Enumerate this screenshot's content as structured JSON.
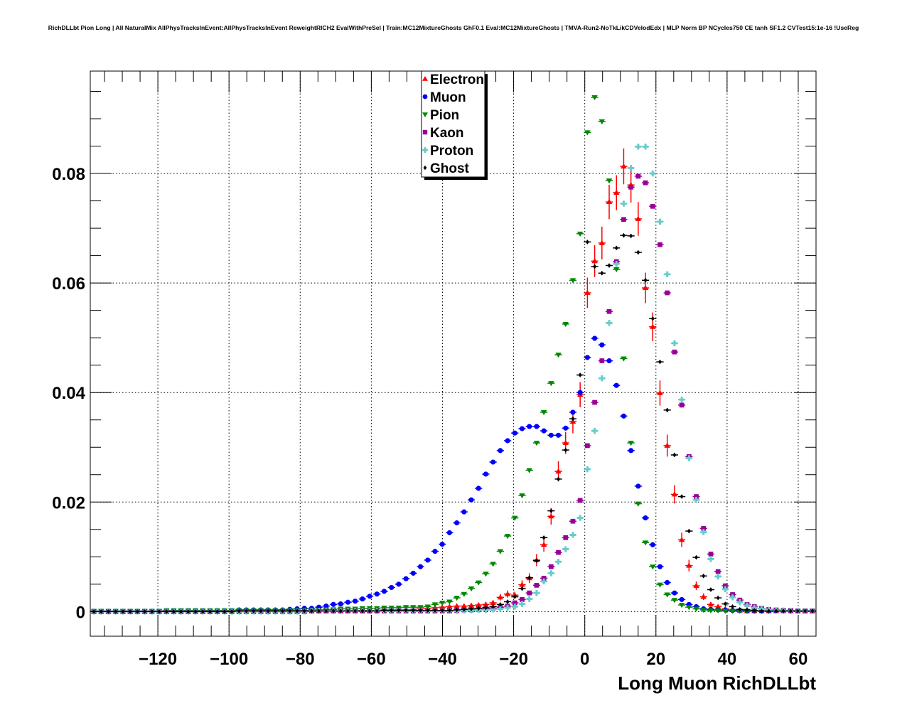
{
  "chart_data": {
    "type": "scatter",
    "title": "RichDLLbt Pion Long | All NaturalMix AllPhysTracksInEvent:AllPhysTracksInEvent ReweightRICH2 EvalWithPreSel | Train:MC12MixtureGhosts GhF0.1 Eval:MC12MixtureGhosts | TMVA-Run2-NoTkLikCDVelodEdx | MLP Norm BP NCycles750 CE tanh SF1.2 CVTest15:1e-16 !UseReg",
    "xlabel": "Long Muon RichDLLbt",
    "ylabel": "",
    "xlim": [
      -139,
      65
    ],
    "ylim": [
      -0.0045,
      0.0987
    ],
    "nbins": 100,
    "grid": true,
    "legend_position": "top-center",
    "xticks": [
      -120,
      -100,
      -80,
      -60,
      -40,
      -20,
      0,
      20,
      40,
      60
    ],
    "xtick_labels": [
      "−120",
      "−100",
      "−80",
      "−60",
      "−40",
      "−20",
      "0",
      "20",
      "40",
      "60"
    ],
    "yticks": [
      0,
      0.02,
      0.04,
      0.06,
      0.08
    ],
    "ytick_labels": [
      "0",
      "0.02",
      "0.04",
      "0.06",
      "0.08"
    ],
    "series": [
      {
        "name": "Electron",
        "color": "#ff0000",
        "marker": "triangle-up",
        "values": [
          0,
          0,
          0,
          0,
          0,
          0,
          0,
          0,
          0,
          0,
          0,
          0,
          0,
          0,
          0,
          0,
          0,
          0,
          0,
          0,
          0.0001,
          0.0001,
          0.0001,
          0.0001,
          0.0001,
          0.0001,
          0.0001,
          0.0001,
          0.0001,
          0.0001,
          0.0001,
          0.0001,
          0.0001,
          0.0001,
          0.0001,
          0.0002,
          0.0002,
          0.0002,
          0.0002,
          0.0002,
          0.0003,
          0.0003,
          0.0003,
          0.0003,
          0.0004,
          0.0005,
          0.0006,
          0.0007,
          0.0008,
          0.0009,
          0.001,
          0.001,
          0.0011,
          0.0012,
          0.0013,
          0.0016,
          0.0026,
          0.0032,
          0.003,
          0.0049,
          0.0061,
          0.0094,
          0.0122,
          0.0174,
          0.0256,
          0.0308,
          0.0347,
          0.0396,
          0.0582,
          0.064,
          0.0673,
          0.0748,
          0.0765,
          0.0813,
          0.0779,
          0.0717,
          0.0591,
          0.052,
          0.0399,
          0.0303,
          0.0214,
          0.0131,
          0.0084,
          0.0047,
          0.0027,
          0.0013,
          0.0009,
          0.0005,
          0.0003,
          0.0002,
          0.0001,
          0.0001,
          0.0001,
          0.0001,
          0.0001,
          0.0001,
          0.0001,
          0.0001,
          0.0001,
          0.0001
        ]
      },
      {
        "name": "Muon",
        "color": "#0000ff",
        "marker": "circle",
        "values": [
          0.0001,
          0.0001,
          0.0001,
          0.0001,
          0.0001,
          0.0001,
          0.0001,
          0.0001,
          0.0001,
          0.0001,
          0.0002,
          0.0002,
          0.0002,
          0.0002,
          0.0002,
          0.0002,
          0.0002,
          0.0002,
          0.0002,
          0.0002,
          0.0003,
          0.0003,
          0.0003,
          0.0003,
          0.0003,
          0.0003,
          0.0003,
          0.0004,
          0.0005,
          0.0006,
          0.0006,
          0.0008,
          0.001,
          0.0013,
          0.0014,
          0.0017,
          0.0019,
          0.0023,
          0.0028,
          0.0032,
          0.0037,
          0.0044,
          0.005,
          0.006,
          0.007,
          0.0082,
          0.0094,
          0.011,
          0.0123,
          0.0144,
          0.0162,
          0.0182,
          0.0204,
          0.0225,
          0.0251,
          0.0273,
          0.0294,
          0.0312,
          0.0326,
          0.0334,
          0.0338,
          0.0338,
          0.033,
          0.0322,
          0.0322,
          0.0335,
          0.0364,
          0.04,
          0.0464,
          0.0499,
          0.0487,
          0.0458,
          0.0413,
          0.0357,
          0.0294,
          0.0229,
          0.0171,
          0.0122,
          0.0082,
          0.0053,
          0.0034,
          0.0022,
          0.0013,
          0.0009,
          0.0005,
          0.0004,
          0.0003,
          0.0003,
          0.0002,
          0.0002,
          0.0001,
          0.0001,
          0.0001,
          0.0001,
          0.0001,
          0.0001,
          0.0001,
          0.0001,
          0.0001,
          0.0001
        ]
      },
      {
        "name": "Pion",
        "color": "#008800",
        "marker": "triangle-down",
        "values": [
          0.0001,
          0.0001,
          0.0001,
          0.0001,
          0.0001,
          0.0001,
          0.0001,
          0.0001,
          0.0001,
          0.0001,
          0.0002,
          0.0002,
          0.0002,
          0.0002,
          0.0002,
          0.0002,
          0.0002,
          0.0002,
          0.0002,
          0.0002,
          0.0002,
          0.0002,
          0.0002,
          0.0002,
          0.0002,
          0.0002,
          0.0002,
          0.0002,
          0.0002,
          0.0002,
          0.0003,
          0.0003,
          0.0004,
          0.0004,
          0.0005,
          0.0005,
          0.0005,
          0.0006,
          0.0006,
          0.0006,
          0.0007,
          0.0007,
          0.0007,
          0.0008,
          0.0008,
          0.0008,
          0.0009,
          0.0013,
          0.0016,
          0.0018,
          0.0025,
          0.0032,
          0.0042,
          0.0053,
          0.0069,
          0.0087,
          0.011,
          0.0138,
          0.0171,
          0.0212,
          0.0258,
          0.0308,
          0.0364,
          0.0417,
          0.0469,
          0.0525,
          0.0605,
          0.069,
          0.0875,
          0.0939,
          0.0895,
          0.0787,
          0.0625,
          0.0462,
          0.0308,
          0.0197,
          0.0126,
          0.0082,
          0.0049,
          0.0031,
          0.0021,
          0.0012,
          0.0008,
          0.0005,
          0.0003,
          0.0002,
          0.0002,
          0.0001,
          0.0001,
          0.0001,
          0.0001,
          0.0001,
          0.0001,
          0.0001,
          0.0001,
          0.0001,
          0.0001,
          0.0001,
          0.0001,
          0.0001
        ]
      },
      {
        "name": "Kaon",
        "color": "#990099",
        "marker": "square",
        "values": [
          0,
          0,
          0,
          0,
          0,
          0,
          0,
          0,
          0,
          0,
          0,
          0,
          0,
          0,
          0,
          0,
          0,
          0,
          0,
          0,
          0,
          0,
          0,
          0,
          0,
          0,
          0,
          0,
          0,
          0,
          0.0001,
          0.0001,
          0.0001,
          0.0001,
          0.0001,
          0.0001,
          0.0001,
          0.0001,
          0.0001,
          0.0001,
          0.0001,
          0.0001,
          0.0001,
          0.0001,
          0.0001,
          0.0001,
          0.0001,
          0.0001,
          0.0001,
          0.0001,
          0.0002,
          0.0003,
          0.0003,
          0.0004,
          0.0005,
          0.0006,
          0.0008,
          0.001,
          0.0016,
          0.0022,
          0.0034,
          0.0048,
          0.0061,
          0.0082,
          0.0108,
          0.0135,
          0.0165,
          0.0203,
          0.0303,
          0.0382,
          0.0458,
          0.0548,
          0.0639,
          0.0716,
          0.0775,
          0.0795,
          0.0783,
          0.074,
          0.067,
          0.0582,
          0.0474,
          0.0377,
          0.0283,
          0.021,
          0.0152,
          0.0105,
          0.0073,
          0.0047,
          0.0031,
          0.0021,
          0.0013,
          0.0009,
          0.0006,
          0.0004,
          0.0003,
          0.0002,
          0.0002,
          0.0001,
          0.0001,
          0.0001
        ]
      },
      {
        "name": "Proton",
        "color": "#66cccc",
        "marker": "cross",
        "values": [
          0,
          0,
          0,
          0,
          0,
          0,
          0,
          0,
          0,
          0,
          0,
          0,
          0,
          0,
          0,
          0,
          0,
          0,
          0,
          0,
          0,
          0,
          0,
          0,
          0,
          0,
          0,
          0,
          0,
          0,
          0.0001,
          0.0001,
          0.0001,
          0.0001,
          0.0001,
          0.0001,
          0.0001,
          0.0001,
          0.0001,
          0.0001,
          0.0001,
          0.0001,
          0.0001,
          0.0001,
          0.0001,
          0.0001,
          0.0001,
          0.0001,
          0.0001,
          0.0001,
          0.0001,
          0.0002,
          0.0002,
          0.0003,
          0.0003,
          0.0004,
          0.0005,
          0.0007,
          0.0009,
          0.0014,
          0.0023,
          0.0034,
          0.0055,
          0.007,
          0.0091,
          0.0114,
          0.014,
          0.0171,
          0.026,
          0.033,
          0.0426,
          0.0527,
          0.0635,
          0.0745,
          0.081,
          0.0849,
          0.0849,
          0.08,
          0.0712,
          0.0616,
          0.049,
          0.0387,
          0.028,
          0.0204,
          0.0145,
          0.0096,
          0.0064,
          0.0041,
          0.0026,
          0.0017,
          0.0011,
          0.0007,
          0.0005,
          0.0003,
          0.0002,
          0.0002,
          0.0001,
          0.0001,
          0.0001,
          0.0001
        ]
      },
      {
        "name": "Ghost",
        "color": "#000000",
        "marker": "diamond",
        "values": [
          0,
          0,
          0,
          0,
          0,
          0,
          0,
          0,
          0,
          0,
          0,
          0,
          0,
          0,
          0,
          0,
          0,
          0,
          0,
          0,
          0.0001,
          0.0001,
          0.0001,
          0.0001,
          0.0001,
          0.0001,
          0.0001,
          0.0001,
          0.0001,
          0.0001,
          0.0001,
          0.0001,
          0.0001,
          0.0001,
          0.0001,
          0.0001,
          0.0001,
          0.0001,
          0.0001,
          0.0001,
          0.0002,
          0.0002,
          0.0002,
          0.0002,
          0.0002,
          0.0002,
          0.0002,
          0.0002,
          0.0002,
          0.0002,
          0.0003,
          0.0004,
          0.0005,
          0.0006,
          0.0007,
          0.0009,
          0.0013,
          0.0018,
          0.0027,
          0.0042,
          0.0062,
          0.0093,
          0.0135,
          0.0184,
          0.0242,
          0.0295,
          0.0352,
          0.0432,
          0.0675,
          0.063,
          0.0618,
          0.0632,
          0.0664,
          0.0687,
          0.0686,
          0.0656,
          0.0605,
          0.0535,
          0.0456,
          0.0368,
          0.0286,
          0.021,
          0.0147,
          0.0099,
          0.0065,
          0.004,
          0.0025,
          0.0014,
          0.0009,
          0.0004,
          0.0003,
          0.0002,
          0.0001,
          0.0001,
          0.0001,
          0.0001,
          0.0001,
          0.0001,
          0.0001,
          0.0001
        ]
      }
    ]
  }
}
